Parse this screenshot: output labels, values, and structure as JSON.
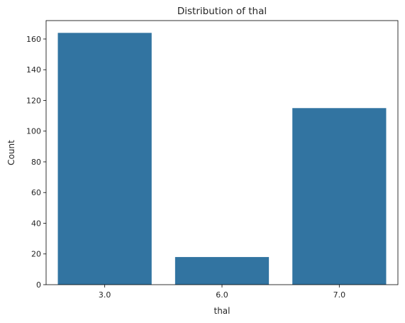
{
  "chart_data": {
    "type": "bar",
    "title": "Distribution of thal",
    "xlabel": "thal",
    "ylabel": "Count",
    "categories": [
      "3.0",
      "6.0",
      "7.0"
    ],
    "values": [
      164,
      18,
      115
    ],
    "ylim": [
      0,
      172
    ],
    "yticks": [
      0,
      20,
      40,
      60,
      80,
      100,
      120,
      140,
      160
    ],
    "bar_color": "#3274a1",
    "grid": false
  }
}
